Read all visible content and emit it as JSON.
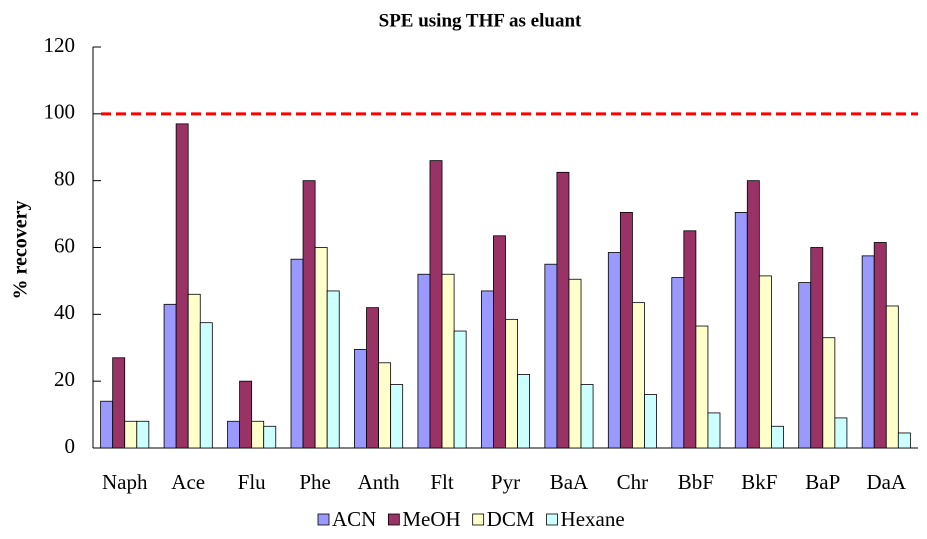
{
  "chart_data": {
    "type": "bar",
    "title": "SPE using THF as eluant",
    "y_label": "% recovery",
    "categories": [
      "Naph",
      "Ace",
      "Flu",
      "Phe",
      "Anth",
      "Flt",
      "Pyr",
      "BaA",
      "Chr",
      "BbF",
      "BkF",
      "BaP",
      "DaA"
    ],
    "series": [
      {
        "name": "ACN",
        "color": "#9999ff",
        "values": [
          14,
          43,
          8,
          56.5,
          29.5,
          52,
          47,
          55,
          58.5,
          51,
          70.5,
          49.5,
          57.5
        ]
      },
      {
        "name": "MeOH",
        "color": "#993366",
        "values": [
          27,
          97,
          20,
          80,
          42,
          86,
          63.5,
          82.5,
          70.5,
          65,
          80,
          60,
          61.5
        ]
      },
      {
        "name": "DCM",
        "color": "#ffffcc",
        "values": [
          8,
          46,
          8,
          60,
          25.5,
          52,
          38.5,
          50.5,
          43.5,
          36.5,
          51.5,
          33,
          42.5
        ]
      },
      {
        "name": "Hexane",
        "color": "#ccffff",
        "values": [
          8,
          37.5,
          6.5,
          47,
          19,
          35,
          22,
          19,
          16,
          10.5,
          6.5,
          9,
          4.5
        ]
      }
    ],
    "ylim": [
      0,
      120
    ],
    "yticks": [
      0,
      20,
      40,
      60,
      80,
      100,
      120
    ],
    "grid": false,
    "reference_line": 100,
    "reference_color": "#ff0000",
    "legend": "bottom"
  }
}
